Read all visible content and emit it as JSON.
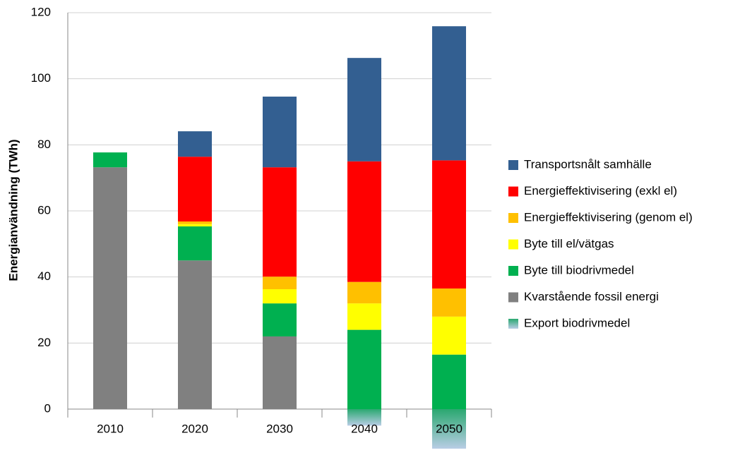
{
  "chart_data": {
    "type": "stacked_bar",
    "y_label": "Energianvändning (TWh)",
    "categories": [
      "2010",
      "2020",
      "2030",
      "2040",
      "2050"
    ],
    "series": [
      {
        "name": "Transportsnålt samhälle",
        "color": "#335f91",
        "values": [
          0,
          7.7,
          21.4,
          31.3,
          40.6
        ]
      },
      {
        "name": "Energieffektivisering (exkl el)",
        "color": "#ff0000",
        "values": [
          0,
          19.6,
          33.1,
          36.5,
          38.8
        ]
      },
      {
        "name": "Energieffektivisering (genom el)",
        "color": "#ffc000",
        "values": [
          0,
          0.8,
          3.8,
          6.5,
          8.5
        ]
      },
      {
        "name": "Byte till el/vätgas",
        "color": "#ffff00",
        "values": [
          0,
          0.7,
          4.3,
          8,
          11.5
        ]
      },
      {
        "name": "Byte till biodrivmedel",
        "color": "#00b050",
        "values": [
          4.5,
          10.3,
          10,
          24,
          16.5
        ]
      },
      {
        "name": "Kvarstående fossil energi",
        "color": "#808080",
        "values": [
          73.2,
          45,
          22,
          0,
          0
        ]
      },
      {
        "name": "Export biodrivmedel",
        "color": "#b9cde5",
        "values": [
          0,
          0,
          0,
          -5,
          -12
        ]
      }
    ],
    "ylim": [
      -12,
      120
    ],
    "yticks": [
      0,
      20,
      40,
      60,
      80,
      100,
      120
    ],
    "grid": true
  }
}
